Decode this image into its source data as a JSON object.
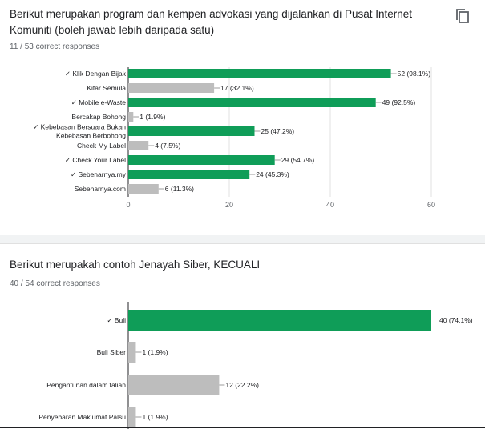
{
  "questions": [
    {
      "title": "Berikut merupakan program dan kempen advokasi yang dijalankan di Pusat Internet Komuniti (boleh jawab lebih daripada satu)",
      "score": "11 / 53 correct responses",
      "copy_icon": "copy-icon"
    },
    {
      "title": "Berikut merupakah contoh Jenayah Siber, KECUALI",
      "score": "40 / 54 correct responses"
    }
  ],
  "colors": {
    "correct": "#0f9d58",
    "incorrect": "#bdbdbd",
    "axis": "#202124",
    "grid": "#e0e0e0",
    "label": "#202124"
  },
  "chart_data": [
    {
      "type": "bar",
      "orientation": "horizontal",
      "categories": [
        "✓ Klik Dengan Bijak",
        "Kitar Semula",
        "✓ Mobile e-Waste",
        "Bercakap Bohong",
        "✓ Kebebasan Bersuara Bukan Kebebasan Berbohong",
        "Check My Label",
        "✓ Check Your Label",
        "✓ Sebenarnya.my",
        "Sebenarnya.com"
      ],
      "values": [
        52,
        17,
        49,
        1,
        25,
        4,
        29,
        24,
        6
      ],
      "value_labels": [
        "52 (98.1%)",
        "17 (32.1%)",
        "49 (92.5%)",
        "1 (1.9%)",
        "25 (47.2%)",
        "4 (7.5%)",
        "29 (54.7%)",
        "24 (45.3%)",
        "6 (11.3%)"
      ],
      "correct": [
        true,
        false,
        true,
        false,
        true,
        false,
        true,
        true,
        false
      ],
      "xlim": [
        0,
        60
      ],
      "xticks": [
        "0",
        "20",
        "40",
        "60"
      ],
      "grid": true
    },
    {
      "type": "bar",
      "orientation": "horizontal",
      "categories": [
        "✓ Buli",
        "Buli Siber",
        "Pengantunan dalam talian",
        "Penyebaran Maklumat Palsu"
      ],
      "values": [
        40,
        1,
        12,
        1
      ],
      "value_labels": [
        "40 (74.1%)",
        "1 (1.9%)",
        "12 (22.2%)",
        "1 (1.9%)"
      ],
      "correct": [
        true,
        false,
        false,
        false
      ],
      "xlim": [
        0,
        40
      ],
      "grid": true
    }
  ]
}
